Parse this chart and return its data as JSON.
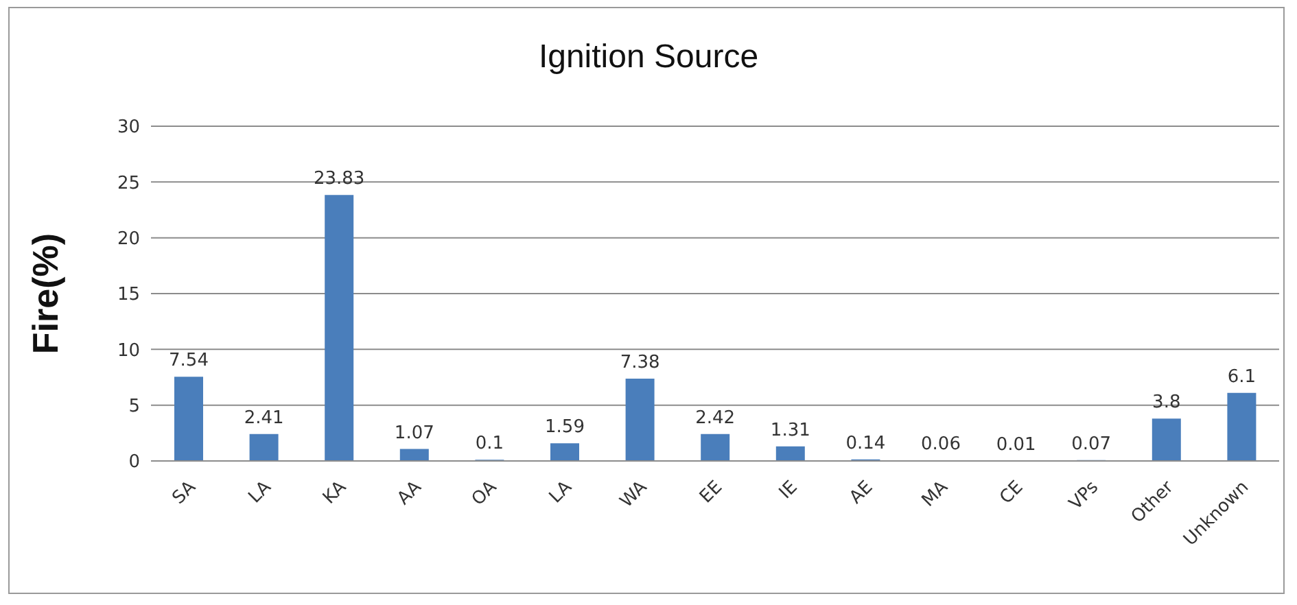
{
  "chart_data": {
    "type": "bar",
    "title": "Ignition Source",
    "ylabel": "Fire(%)",
    "categories": [
      "SA",
      "LA",
      "KA",
      "AA",
      "OA",
      "LA",
      "WA",
      "EE",
      "IE",
      "AE",
      "MA",
      "CE",
      "VPs",
      "Other",
      "Unknown"
    ],
    "values": [
      7.54,
      2.41,
      23.83,
      1.07,
      0.1,
      1.59,
      7.38,
      2.42,
      1.31,
      0.14,
      0.06,
      0.01,
      0.07,
      3.8,
      6.1
    ],
    "color": "#4a7ebb",
    "ylim": [
      0,
      30
    ],
    "yticks": [
      0,
      5,
      10,
      15,
      20,
      25,
      30
    ],
    "grid": "y",
    "data_labels": true
  }
}
